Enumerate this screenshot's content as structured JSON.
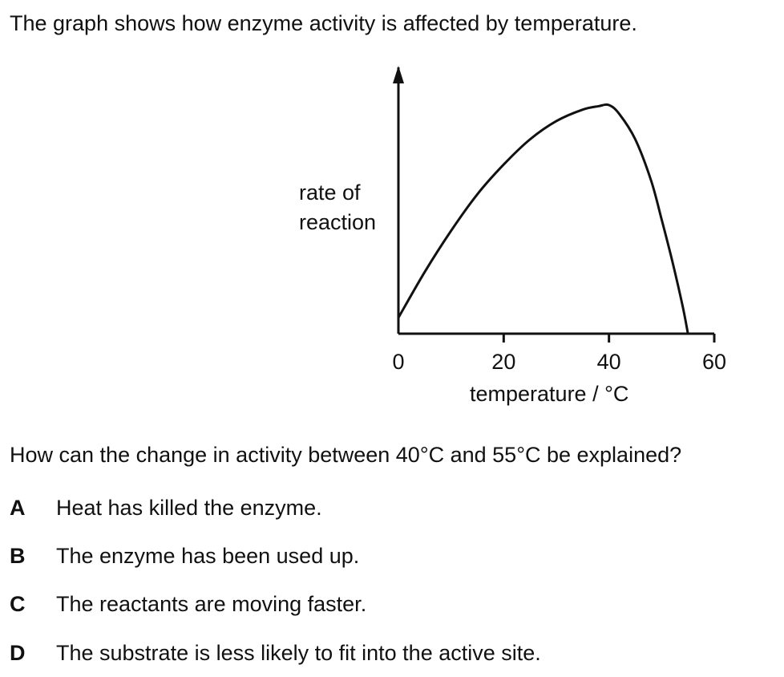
{
  "intro": "The graph shows how enzyme activity is affected by temperature.",
  "question": "How can the change in activity between 40°C and 55°C be explained?",
  "options": [
    {
      "letter": "A",
      "text": "Heat has killed the enzyme."
    },
    {
      "letter": "B",
      "text": "The enzyme has been used up."
    },
    {
      "letter": "C",
      "text": "The reactants are moving faster."
    },
    {
      "letter": "D",
      "text": "The substrate is less likely to fit into the active site."
    }
  ],
  "chart_data": {
    "type": "line",
    "title": "",
    "xlabel": "temperature / °C",
    "ylabel_lines": [
      "rate of",
      "reaction"
    ],
    "xlim": [
      0,
      60
    ],
    "ylim": [
      0,
      1
    ],
    "x_ticks": [
      0,
      20,
      40,
      60
    ],
    "x_tick_labels": [
      "0",
      "20",
      "40",
      "60"
    ],
    "grid": false,
    "legend": "none",
    "y_values_relative": true,
    "series": [
      {
        "x": [
          0,
          5,
          10,
          15,
          20,
          25,
          30,
          35,
          38,
          40,
          42,
          45,
          48,
          50,
          52,
          54,
          55
        ],
        "y": [
          0.07,
          0.27,
          0.45,
          0.61,
          0.74,
          0.85,
          0.93,
          0.98,
          0.995,
          1.0,
          0.96,
          0.85,
          0.67,
          0.5,
          0.32,
          0.12,
          0.0
        ]
      }
    ],
    "colors": {
      "line": "#111111",
      "axis": "#111111"
    }
  }
}
